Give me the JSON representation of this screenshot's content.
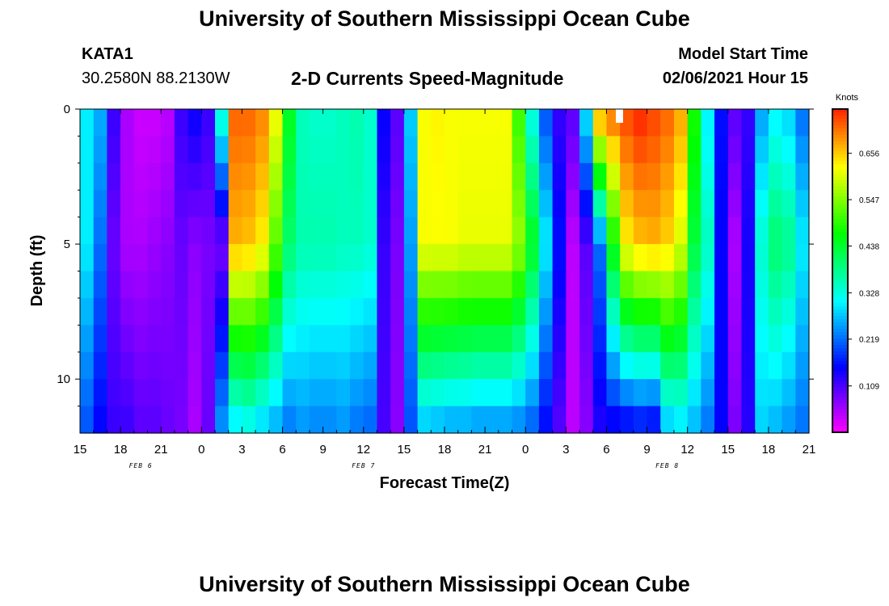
{
  "header": {
    "title": "University of Southern Mississippi Ocean Cube",
    "station_id": "KATA1",
    "coordinates": "30.2580N 88.2130W",
    "subtitle": "2-D Currents Speed-Magnitude",
    "model_start_label": "Model Start Time",
    "model_start_value": "02/06/2021 Hour 15"
  },
  "footer": {
    "title": "University of Southern Mississippi Ocean Cube"
  },
  "chart_data": {
    "type": "heatmap",
    "title": "2-D Currents Speed-Magnitude",
    "xlabel": "Forecast Time(Z)",
    "ylabel": "Depth (ft)",
    "units": "Knots",
    "x_range_hours": [
      0,
      54
    ],
    "x_start": "02/06/2021 15Z",
    "x_tick_labels": [
      "15",
      "18",
      "21",
      "0",
      "3",
      "6",
      "9",
      "12",
      "15",
      "18",
      "21",
      "0",
      "3",
      "6",
      "9",
      "12",
      "15",
      "18",
      "21"
    ],
    "date_labels": [
      {
        "text": "FEB 6",
        "hour": 4.5
      },
      {
        "text": "FEB 7",
        "hour": 21
      },
      {
        "text": "FEB 8",
        "hour": 43.5
      }
    ],
    "y_range_ft": [
      0,
      12
    ],
    "y_tick_labels": [
      "0",
      "5",
      "10"
    ],
    "y_tick_values": [
      0,
      5,
      10
    ],
    "colorbar": {
      "label": "Knots",
      "min": 0.0,
      "max": 0.76,
      "tick_labels": [
        "0.656",
        "0.547",
        "0.438",
        "0.328",
        "0.219",
        "0.109"
      ],
      "tick_values": [
        0.656,
        0.547,
        0.438,
        0.328,
        0.219,
        0.109
      ]
    },
    "approx_speed_profiles_knots": {
      "columns_hour": [
        0,
        1,
        2,
        3,
        4,
        5,
        6,
        7,
        8,
        9,
        10,
        11,
        12,
        13,
        14,
        15,
        16,
        17,
        18,
        19,
        20,
        21,
        22,
        23,
        24,
        25,
        26,
        27,
        28,
        29,
        30,
        31,
        32,
        33,
        34,
        35,
        36,
        37,
        38,
        39,
        40,
        41,
        42,
        43,
        44,
        45,
        46,
        47,
        48,
        49,
        50,
        51,
        52,
        53
      ],
      "surface_0ft": [
        0.3,
        0.26,
        0.12,
        0.05,
        0.03,
        0.03,
        0.04,
        0.12,
        0.15,
        0.12,
        0.35,
        0.72,
        0.72,
        0.7,
        0.62,
        0.45,
        0.35,
        0.34,
        0.34,
        0.35,
        0.36,
        0.34,
        0.15,
        0.1,
        0.28,
        0.62,
        0.63,
        0.62,
        0.62,
        0.62,
        0.62,
        0.62,
        0.5,
        0.32,
        0.2,
        0.12,
        0.1,
        0.3,
        0.7,
        0.72,
        0.74,
        0.76,
        0.74,
        0.72,
        0.68,
        0.48,
        0.3,
        0.16,
        0.1,
        0.12,
        0.25,
        0.3,
        0.28,
        0.22
      ],
      "mid_5ft": [
        0.3,
        0.22,
        0.09,
        0.05,
        0.05,
        0.06,
        0.07,
        0.09,
        0.07,
        0.08,
        0.08,
        0.67,
        0.66,
        0.63,
        0.52,
        0.4,
        0.36,
        0.36,
        0.36,
        0.35,
        0.35,
        0.34,
        0.12,
        0.08,
        0.25,
        0.62,
        0.62,
        0.62,
        0.61,
        0.61,
        0.61,
        0.61,
        0.56,
        0.45,
        0.3,
        0.16,
        0.04,
        0.1,
        0.22,
        0.47,
        0.63,
        0.66,
        0.67,
        0.65,
        0.6,
        0.43,
        0.35,
        0.15,
        0.05,
        0.14,
        0.34,
        0.4,
        0.38,
        0.3
      ],
      "deep_12ft": [
        0.2,
        0.15,
        0.12,
        0.12,
        0.1,
        0.1,
        0.09,
        0.08,
        0.05,
        0.09,
        0.25,
        0.28,
        0.3,
        0.27,
        0.25,
        0.22,
        0.24,
        0.23,
        0.23,
        0.24,
        0.22,
        0.21,
        0.11,
        0.07,
        0.2,
        0.26,
        0.25,
        0.24,
        0.24,
        0.23,
        0.23,
        0.23,
        0.22,
        0.2,
        0.15,
        0.1,
        0.04,
        0.07,
        0.13,
        0.13,
        0.13,
        0.14,
        0.13,
        0.26,
        0.28,
        0.26,
        0.22,
        0.15,
        0.08,
        0.13,
        0.28,
        0.26,
        0.24,
        0.22
      ]
    }
  }
}
